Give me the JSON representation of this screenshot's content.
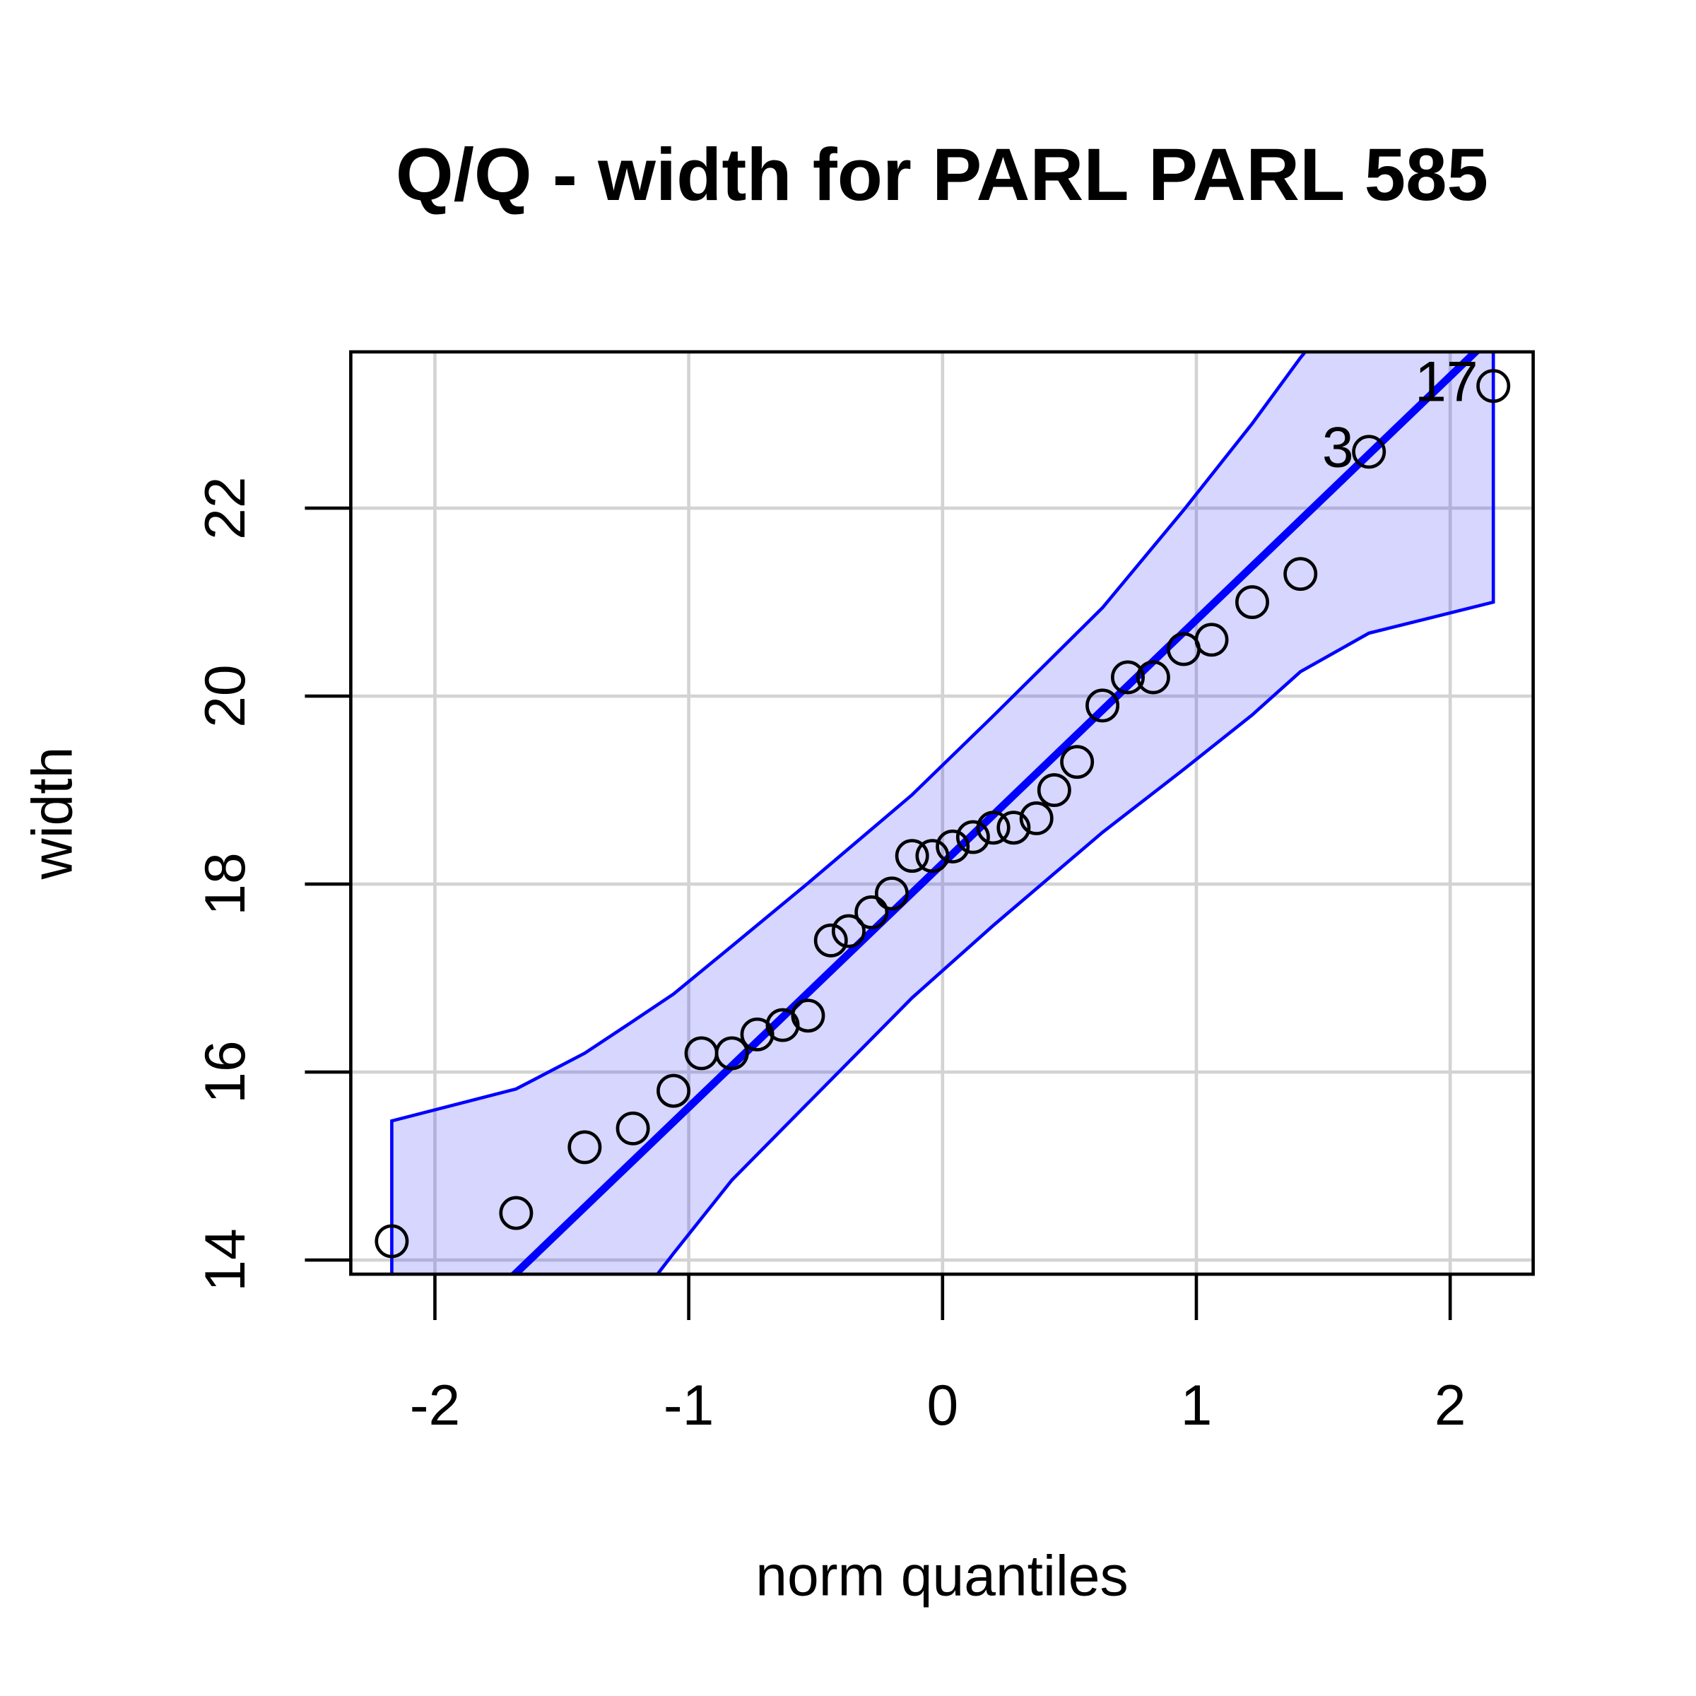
{
  "chart_data": {
    "type": "qq",
    "title": "Q/Q - width for PARL PARL 585",
    "x_label": "norm quantiles",
    "y_label": "width",
    "x": [
      -2.17,
      -1.68,
      -1.41,
      -1.22,
      -1.06,
      -0.95,
      -0.83,
      -0.73,
      -0.63,
      -0.53,
      -0.44,
      -0.37,
      -0.28,
      -0.2,
      -0.12,
      -0.04,
      0.04,
      0.12,
      0.2,
      0.28,
      0.37,
      0.44,
      0.53,
      0.63,
      0.73,
      0.83,
      0.95,
      1.06,
      1.22,
      1.41,
      1.68,
      2.17
    ],
    "values": [
      14.2,
      14.5,
      15.2,
      15.4,
      15.8,
      16.2,
      16.2,
      16.4,
      16.5,
      16.6,
      17.4,
      17.5,
      17.7,
      17.9,
      18.3,
      18.3,
      18.4,
      18.5,
      18.6,
      18.6,
      18.7,
      19.0,
      19.3,
      19.9,
      20.2,
      20.2,
      20.5,
      20.6,
      21.0,
      21.3,
      22.6,
      23.3
    ],
    "point_labels": [
      null,
      null,
      null,
      null,
      null,
      null,
      null,
      null,
      null,
      null,
      null,
      null,
      null,
      null,
      null,
      null,
      null,
      null,
      null,
      null,
      null,
      null,
      null,
      null,
      null,
      null,
      null,
      null,
      null,
      null,
      "3",
      "17"
    ],
    "point_color": "#000000",
    "reference_line": {
      "intercept": 18.218,
      "slope": 2.593,
      "color": "#0000ff"
    },
    "envelope": {
      "x": [
        -2.17,
        -1.68,
        -1.41,
        -1.22,
        -1.06,
        -0.83,
        -0.53,
        -0.12,
        0.2,
        0.63,
        0.95,
        1.22,
        1.41,
        1.68,
        2.17
      ],
      "upper": [
        15.48,
        15.82,
        16.2,
        16.54,
        16.83,
        17.34,
        18.01,
        18.95,
        19.79,
        20.94,
        21.98,
        22.9,
        23.6,
        24.5,
        26.0
      ],
      "lower": [
        10.2,
        11.9,
        12.85,
        13.51,
        14.07,
        14.85,
        15.67,
        16.79,
        17.56,
        18.55,
        19.22,
        19.8,
        20.26,
        20.67,
        21.0
      ],
      "color": "#0000ff",
      "fill": "rgba(0,0,255,0.16)"
    },
    "xlim": [
      -2.3315,
      2.327
    ],
    "ylim": [
      13.849,
      23.663
    ],
    "xticks": [
      -2,
      -1,
      0,
      1,
      2
    ],
    "yticks": [
      14,
      16,
      18,
      20,
      22
    ],
    "grid": true
  }
}
